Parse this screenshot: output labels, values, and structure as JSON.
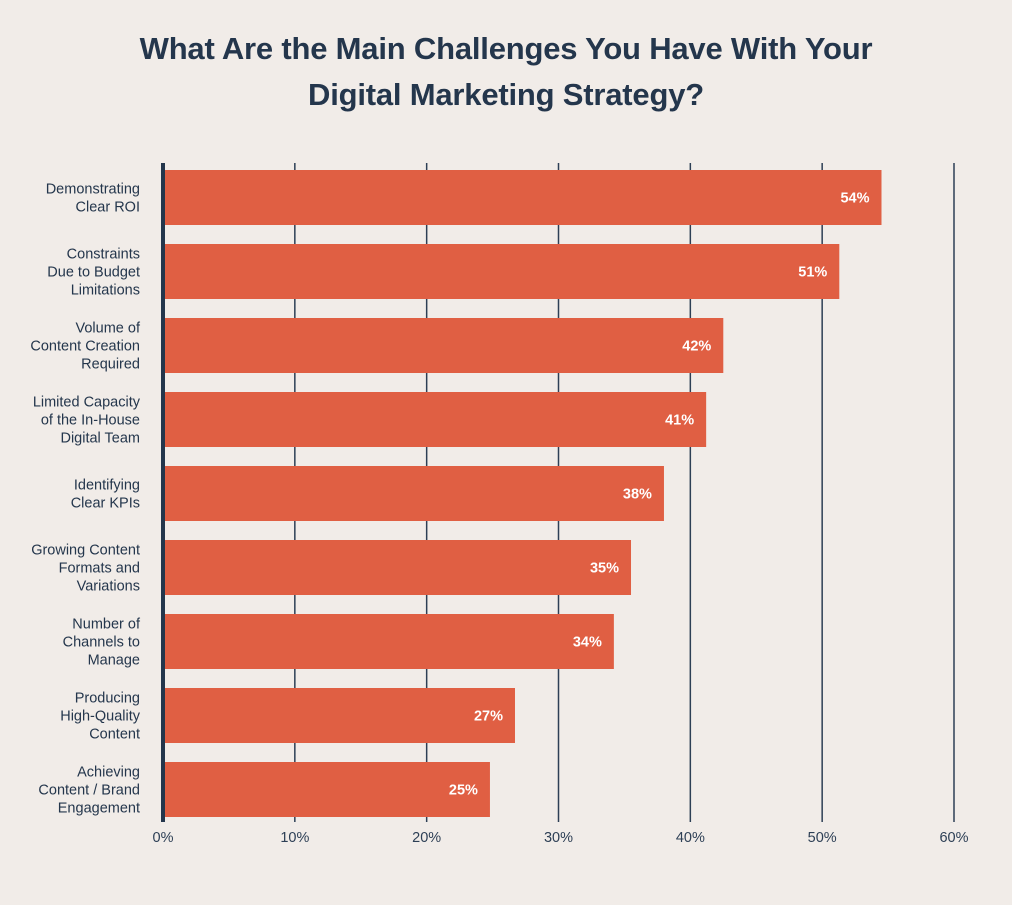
{
  "colors": {
    "background": "#f1ece8",
    "bar": "#e05f43",
    "grid": "#2d3f55",
    "text": "#24364c",
    "value_text": "#ffffff"
  },
  "chart_data": {
    "type": "bar",
    "orientation": "horizontal",
    "title": "What Are the Main Challenges You Have With Your Digital Marketing Strategy?",
    "title_lines": [
      "What Are the Main Challenges You Have With Your",
      "Digital Marketing Strategy?"
    ],
    "categories": [
      [
        "Demonstrating",
        "Clear ROI"
      ],
      [
        "Constraints",
        "Due to Budget",
        "Limitations"
      ],
      [
        "Volume of",
        "Content Creation",
        "Required"
      ],
      [
        "Limited Capacity",
        "of the In-House",
        "Digital Team"
      ],
      [
        "Identifying",
        "Clear KPIs"
      ],
      [
        "Growing Content",
        "Formats and",
        "Variations"
      ],
      [
        "Number of",
        "Channels to",
        "Manage"
      ],
      [
        "Producing",
        "High-Quality",
        "Content"
      ],
      [
        "Achieving",
        "Content / Brand",
        "Engagement"
      ]
    ],
    "values": [
      54.5,
      51.3,
      42.5,
      41.2,
      38,
      35.5,
      34.2,
      26.7,
      24.8
    ],
    "value_labels": [
      "54%",
      "51%",
      "42%",
      "41%",
      "38%",
      "35%",
      "34%",
      "27%",
      "25%"
    ],
    "xlim": [
      0,
      60
    ],
    "xticks": [
      0,
      10,
      20,
      30,
      40,
      50,
      60
    ],
    "xtick_labels": [
      "0%",
      "10%",
      "20%",
      "30%",
      "40%",
      "50%",
      "60%"
    ],
    "xlabel": "",
    "ylabel": "",
    "grid": true,
    "legend": "none"
  }
}
